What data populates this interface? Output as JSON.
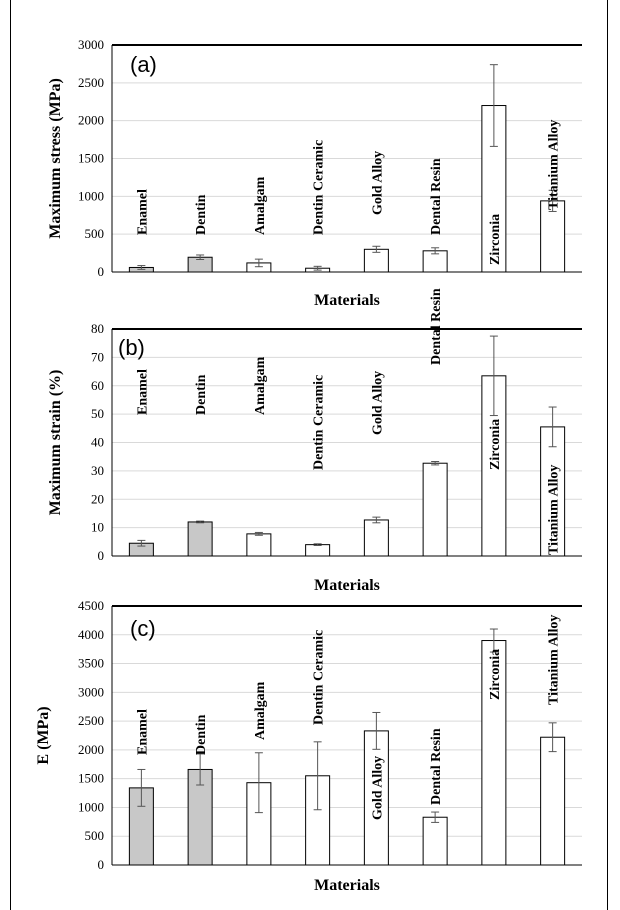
{
  "chart_data": [
    {
      "type": "bar",
      "panel_label": "(a)",
      "categories": [
        "Enamel",
        "Dentin",
        "Amalgam",
        "Dentin Ceramic",
        "Gold Alloy",
        "Dental Resin",
        "Zirconia",
        "Titanium Alloy"
      ],
      "values": [
        60,
        195,
        120,
        50,
        300,
        280,
        2200,
        940
      ],
      "errors": [
        25,
        30,
        50,
        25,
        40,
        40,
        540,
        140
      ],
      "fills": [
        "#c8c8c8",
        "#c8c8c8",
        "#ffffff",
        "#ffffff",
        "#ffffff",
        "#ffffff",
        "#ffffff",
        "#ffffff"
      ],
      "ylim": [
        0,
        3000
      ],
      "yticks": [
        0,
        500,
        1000,
        1500,
        2000,
        2500,
        3000
      ],
      "ylabel": "Maximum stress (MPa)",
      "xlabel": "Materials",
      "grid": true
    },
    {
      "type": "bar",
      "panel_label": "(b)",
      "categories": [
        "Enamel",
        "Dentin",
        "Amalgam",
        "Dentin Ceramic",
        "Gold Alloy",
        "Dental Resin",
        "Zirconia",
        "Titanium Alloy"
      ],
      "values": [
        4.5,
        12,
        7.8,
        4,
        12.7,
        32.7,
        63.5,
        45.5
      ],
      "errors": [
        1,
        0.3,
        0.5,
        0.3,
        1,
        0.6,
        14,
        7
      ],
      "fills": [
        "#c8c8c8",
        "#c8c8c8",
        "#ffffff",
        "#ffffff",
        "#ffffff",
        "#ffffff",
        "#ffffff",
        "#ffffff"
      ],
      "ylim": [
        0,
        80
      ],
      "yticks": [
        0,
        10,
        20,
        30,
        40,
        50,
        60,
        70,
        80
      ],
      "ylabel": "Maximum strain (%)",
      "xlabel": "Materials",
      "grid": true
    },
    {
      "type": "bar",
      "panel_label": "(c)",
      "categories": [
        "Enamel",
        "Dentin",
        "Amalgam",
        "Dentin Ceramic",
        "Gold Alloy",
        "Dental Resin",
        "Zirconia",
        "Titanium Alloy"
      ],
      "values": [
        1340,
        1660,
        1430,
        1550,
        2330,
        830,
        3900,
        2220
      ],
      "errors": [
        320,
        270,
        520,
        590,
        320,
        90,
        200,
        250
      ],
      "fills": [
        "#c8c8c8",
        "#c8c8c8",
        "#ffffff",
        "#ffffff",
        "#ffffff",
        "#ffffff",
        "#ffffff",
        "#ffffff"
      ],
      "ylim": [
        0,
        4500
      ],
      "yticks": [
        0,
        500,
        1000,
        1500,
        2000,
        2500,
        3000,
        3500,
        4000,
        4500
      ],
      "ylabel": "E (MPa)",
      "xlabel": "Materials",
      "grid": true
    }
  ]
}
